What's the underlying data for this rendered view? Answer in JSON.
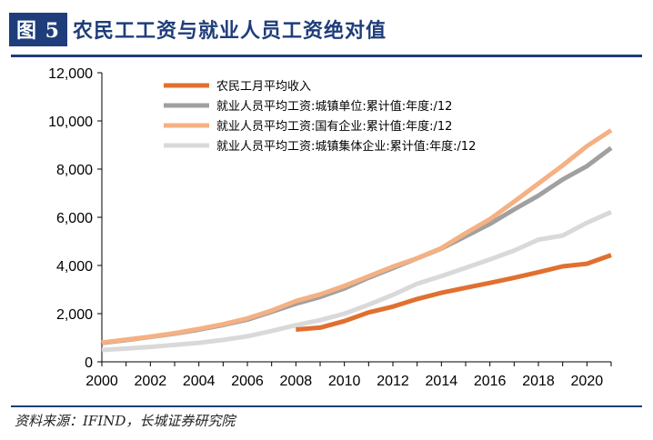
{
  "header": {
    "figure_label": "图 5",
    "figure_title": "农民工工资与就业人员工资绝对值"
  },
  "footer": {
    "source": "资料来源：IFIND，长城证券研究院"
  },
  "chart_data": {
    "type": "line",
    "title": "",
    "xlabel": "",
    "ylabel": "",
    "xlim": [
      2000,
      2021
    ],
    "ylim": [
      0,
      12000
    ],
    "x_ticks": [
      "2000",
      "2002",
      "2004",
      "2006",
      "2008",
      "2010",
      "2012",
      "2014",
      "2016",
      "2018",
      "2020"
    ],
    "y_ticks": [
      "0",
      "2,000",
      "4,000",
      "6,000",
      "8,000",
      "10,000",
      "12,000"
    ],
    "grid": false,
    "legend_position": "top-left",
    "series": [
      {
        "name": "农民工月平均收入",
        "color": "#e07030",
        "x": [
          2008,
          2009,
          2010,
          2011,
          2012,
          2013,
          2014,
          2015,
          2016,
          2017,
          2018,
          2019,
          2020,
          2021
        ],
        "values": [
          1340,
          1417,
          1690,
          2049,
          2290,
          2609,
          2864,
          3072,
          3275,
          3485,
          3721,
          3962,
          4072,
          4432
        ]
      },
      {
        "name": "就业人员平均工资:城镇单位:累计值:年度:/12",
        "color": "#a0a0a0",
        "x": [
          2000,
          2001,
          2002,
          2003,
          2004,
          2005,
          2006,
          2007,
          2008,
          2009,
          2010,
          2011,
          2012,
          2013,
          2014,
          2015,
          2016,
          2017,
          2018,
          2019,
          2020,
          2021
        ],
        "values": [
          780,
          900,
          1035,
          1170,
          1335,
          1530,
          1750,
          2075,
          2410,
          2690,
          3045,
          3490,
          3890,
          4295,
          4700,
          5210,
          5725,
          6325,
          6900,
          7570,
          8120,
          8880
        ]
      },
      {
        "name": "就业人员平均工资:国有企业:累计值:年度:/12",
        "color": "#f4b183",
        "x": [
          2000,
          2001,
          2002,
          2003,
          2004,
          2005,
          2006,
          2007,
          2008,
          2009,
          2010,
          2011,
          2012,
          2013,
          2014,
          2015,
          2016,
          2017,
          2018,
          2019,
          2020,
          2021
        ],
        "values": [
          800,
          920,
          1040,
          1190,
          1365,
          1560,
          1800,
          2130,
          2520,
          2800,
          3150,
          3550,
          3950,
          4300,
          4720,
          5340,
          5920,
          6650,
          7400,
          8150,
          8950,
          9610
        ]
      },
      {
        "name": "就业人员平均工资:城镇集体企业:累计值:年度:/12",
        "color": "#d9d9d9",
        "x": [
          2000,
          2001,
          2002,
          2003,
          2004,
          2005,
          2006,
          2007,
          2008,
          2009,
          2010,
          2011,
          2012,
          2013,
          2014,
          2015,
          2016,
          2017,
          2018,
          2019,
          2020,
          2021
        ],
        "values": [
          490,
          550,
          620,
          700,
          790,
          910,
          1060,
          1280,
          1520,
          1730,
          2000,
          2370,
          2780,
          3240,
          3560,
          3900,
          4250,
          4620,
          5070,
          5240,
          5770,
          6220
        ]
      }
    ]
  }
}
